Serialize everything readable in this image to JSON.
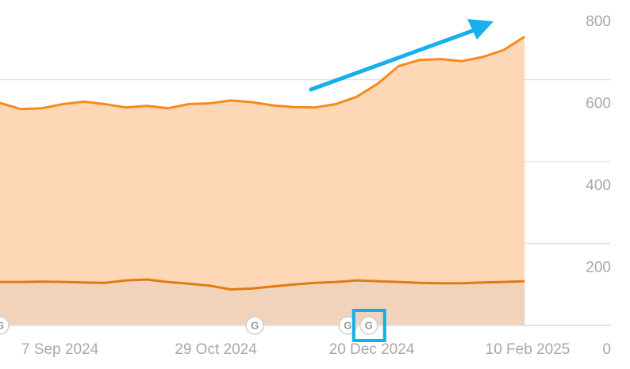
{
  "chart_data": {
    "type": "area",
    "x": [
      "2024-08-18",
      "2024-08-25",
      "2024-09-01",
      "2024-09-08",
      "2024-09-15",
      "2024-09-22",
      "2024-09-29",
      "2024-10-06",
      "2024-10-13",
      "2024-10-20",
      "2024-10-27",
      "2024-11-03",
      "2024-11-10",
      "2024-11-17",
      "2024-11-24",
      "2024-12-01",
      "2024-12-08",
      "2024-12-15",
      "2024-12-22",
      "2024-12-29",
      "2025-01-05",
      "2025-01-12",
      "2025-01-19",
      "2025-01-26",
      "2025-02-02",
      "2025-02-09"
    ],
    "series": [
      {
        "color": "#f68a1e",
        "fill": "#fed8b6",
        "values": [
          543,
          528,
          530,
          540,
          546,
          540,
          532,
          536,
          530,
          540,
          542,
          549,
          545,
          537,
          533,
          532,
          540,
          558,
          590,
          633,
          648,
          650,
          645,
          655,
          672,
          705
        ]
      },
      {
        "color": "#e07b14",
        "fill": "#f1d3bb",
        "values": [
          106,
          106,
          107,
          106,
          105,
          104,
          110,
          112,
          106,
          102,
          97,
          88,
          90,
          95,
          100,
          104,
          106,
          110,
          108,
          106,
          104,
          103,
          103,
          105,
          106,
          108
        ]
      }
    ],
    "xlim": [
      "2024-08-18",
      "2025-02-10"
    ],
    "xticks": [
      {
        "value": "2024-09-07",
        "label": "7 Sep 2024"
      },
      {
        "value": "2024-10-29",
        "label": "29 Oct 2024"
      },
      {
        "value": "2024-12-20",
        "label": "20 Dec 2024"
      },
      {
        "value": "2025-02-10",
        "label": "10 Feb 2025"
      }
    ],
    "ylim": [
      0,
      800
    ],
    "yticks": [
      0,
      200,
      400,
      600,
      800
    ],
    "grid": true,
    "annotations": [
      {
        "x": "2024-08-18",
        "label": "G"
      },
      {
        "x": "2024-11-11",
        "label": "G"
      },
      {
        "x": "2024-12-12",
        "label": "G"
      },
      {
        "x": "2024-12-19",
        "label": "G"
      }
    ]
  }
}
